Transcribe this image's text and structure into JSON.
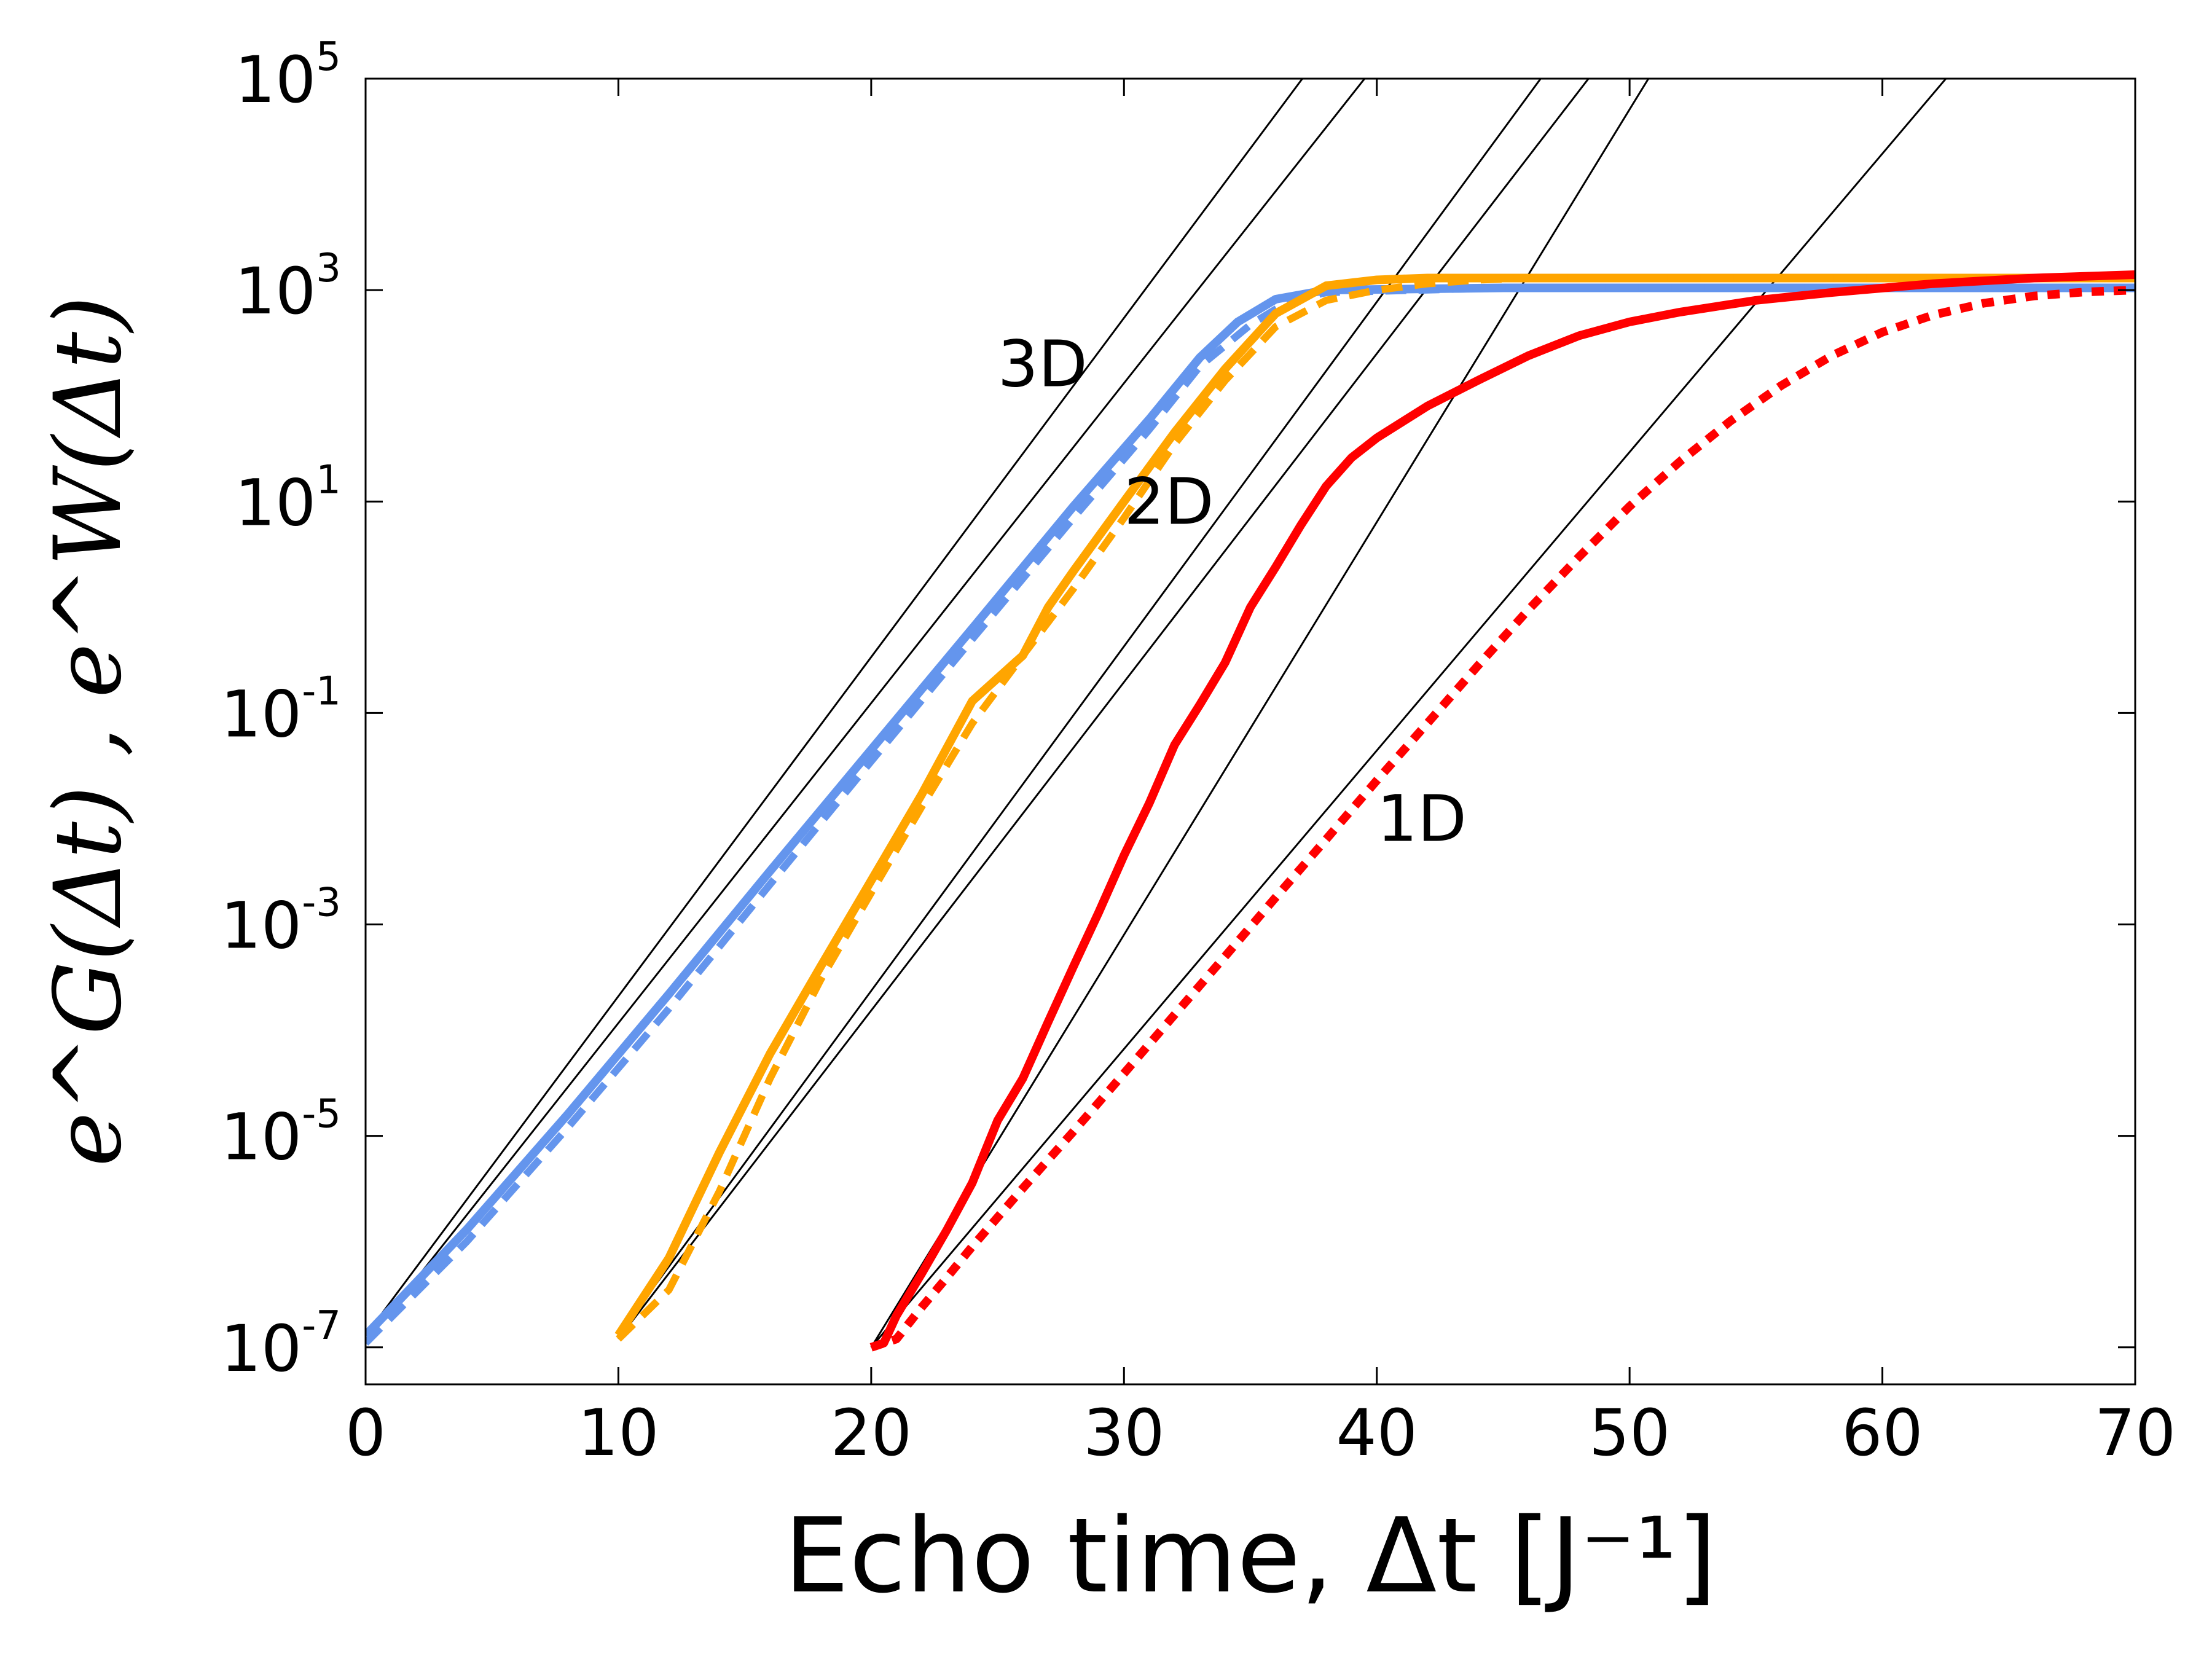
{
  "chart_data": {
    "type": "line",
    "xlabel": "Echo time, Δt [J⁻¹]",
    "ylabel": "e^G(Δt) , e^W(Δt)",
    "xlim": [
      0,
      70
    ],
    "ylim_log10": [
      -7.35,
      5
    ],
    "y_scale": "log",
    "grid": false,
    "x_ticks": [
      0,
      10,
      20,
      30,
      40,
      50,
      60,
      70
    ],
    "y_ticks": [
      {
        "base": "10",
        "exp": "5",
        "log10": 5
      },
      {
        "base": "10",
        "exp": "3",
        "log10": 3
      },
      {
        "base": "10",
        "exp": "1",
        "log10": 1
      },
      {
        "base": "10",
        "exp": "-1",
        "log10": -1
      },
      {
        "base": "10",
        "exp": "-3",
        "log10": -3
      },
      {
        "base": "10",
        "exp": "-5",
        "log10": -5
      },
      {
        "base": "10",
        "exp": "-7",
        "log10": -7
      }
    ],
    "annotations": [
      {
        "text": "3D",
        "x": 25,
        "y": 200
      },
      {
        "text": "2D",
        "x": 30,
        "y": 10
      },
      {
        "text": "1D",
        "x": 40,
        "y": 0.01
      }
    ],
    "series": [
      {
        "style": "solid",
        "color": "#6495ED",
        "x": [
          0,
          4,
          8,
          12,
          16,
          20,
          24,
          28,
          31,
          33,
          34.5,
          36,
          38,
          45,
          55,
          70
        ],
        "y": [
          1.3e-07,
          1.3e-06,
          1.6e-05,
          0.00022,
          0.0032,
          0.045,
          0.63,
          9,
          60,
          230,
          500,
          820,
          1000,
          1050,
          1050,
          1050
        ]
      },
      {
        "style": "dashed",
        "color": "#6495ED",
        "x": [
          0,
          4,
          8,
          12,
          16,
          20,
          24,
          28,
          31,
          33,
          35,
          36.5,
          38,
          45,
          55,
          70
        ],
        "y": [
          1.1e-07,
          1e-06,
          1.2e-05,
          0.00016,
          0.0024,
          0.035,
          0.5,
          7,
          48,
          190,
          470,
          780,
          950,
          1050,
          1050,
          1050
        ]
      },
      {
        "style": "solid",
        "color": "#FFA500",
        "x": [
          10,
          12,
          14,
          16,
          18,
          20,
          22,
          24,
          26,
          27,
          28,
          30,
          32,
          34,
          36,
          38,
          40,
          42,
          44,
          46,
          50,
          60,
          70
        ],
        "y": [
          1.3e-07,
          7e-07,
          7e-06,
          6e-05,
          0.0004,
          0.0026,
          0.017,
          0.13,
          0.35,
          1.0,
          2.2,
          10,
          45,
          180,
          600,
          1100,
          1250,
          1300,
          1300,
          1300,
          1300,
          1300,
          1300
        ]
      },
      {
        "style": "dashed",
        "color": "#FFA500",
        "x": [
          10,
          12,
          14,
          16,
          18,
          20,
          22,
          24,
          26,
          28,
          30,
          32,
          34,
          36,
          38,
          40,
          42,
          44,
          46,
          50,
          60,
          70
        ],
        "y": [
          1.2e-07,
          3.5e-07,
          3e-06,
          3.5e-05,
          0.0003,
          0.002,
          0.013,
          0.08,
          0.35,
          1.5,
          7,
          35,
          140,
          450,
          800,
          1000,
          1150,
          1250,
          1300,
          1300,
          1300,
          1300
        ]
      },
      {
        "style": "solid",
        "color": "#FF0000",
        "x": [
          20,
          20.5,
          21,
          22,
          23,
          24,
          25,
          26,
          27,
          28,
          29,
          30,
          31,
          32,
          33,
          34,
          35,
          36,
          37,
          38,
          39,
          40,
          42,
          44,
          46,
          48,
          50,
          52,
          55,
          58,
          62,
          66,
          70
        ],
        "y": [
          1e-07,
          1.1e-07,
          2e-07,
          5e-07,
          1.3e-06,
          3.6e-06,
          1.4e-05,
          3.5e-05,
          0.00012,
          0.0004,
          0.0013,
          0.0045,
          0.014,
          0.05,
          0.12,
          0.3,
          1.0,
          2.4,
          6,
          14,
          26,
          40,
          80,
          140,
          240,
          370,
          500,
          620,
          800,
          950,
          1150,
          1300,
          1400
        ]
      },
      {
        "style": "dotted",
        "color": "#FF0000",
        "x": [
          20,
          21,
          22,
          23,
          24,
          26,
          28,
          30,
          32,
          34,
          36,
          38,
          40,
          42,
          44,
          46,
          48,
          50,
          52,
          54,
          56,
          58,
          60,
          62,
          64,
          66,
          68,
          70
        ],
        "y": [
          1e-07,
          1.2e-07,
          2.4e-07,
          4.6e-07,
          9e-07,
          3.2e-06,
          1.1e-05,
          3.9e-05,
          0.00014,
          0.0005,
          0.0018,
          0.0064,
          0.023,
          0.08,
          0.28,
          0.95,
          3,
          9,
          24,
          58,
          125,
          240,
          400,
          580,
          750,
          880,
          960,
          1000
        ]
      },
      {
        "style": "fit",
        "color": "#000000",
        "x": [
          0,
          40
        ],
        "y": [
          1.3e-07,
          880000.0
        ]
      },
      {
        "style": "fit",
        "color": "#000000",
        "x": [
          0,
          40
        ],
        "y": [
          1.1e-07,
          140000.0
        ]
      },
      {
        "style": "fit",
        "color": "#000000",
        "x": [
          10,
          50
        ],
        "y": [
          1.3e-07,
          1400000.0
        ]
      },
      {
        "style": "fit",
        "color": "#000000",
        "x": [
          10,
          50
        ],
        "y": [
          1.2e-07,
          320000.0
        ]
      },
      {
        "style": "fit",
        "color": "#000000",
        "x": [
          20,
          60
        ],
        "y": [
          1e-07,
          410000000.0
        ]
      },
      {
        "style": "fit",
        "color": "#000000",
        "x": [
          20,
          70
        ],
        "y": [
          1e-07,
          13000000.0
        ]
      }
    ]
  }
}
